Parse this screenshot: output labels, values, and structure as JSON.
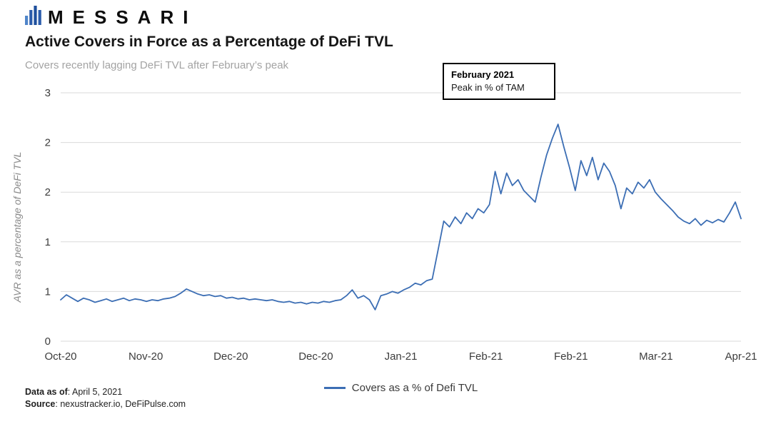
{
  "header": {
    "brand": "MESSARI",
    "title": "Active Covers in Force as a Percentage of DeFi TVL",
    "subtitle": "Covers recently lagging DeFi TVL after February’s peak"
  },
  "chart_data": {
    "type": "line",
    "title": "Active Covers in Force as a Percentage of DeFi TVL",
    "xlabel": "",
    "ylabel": "AVR as a percentage of DeFi TVL",
    "ylim": [
      0,
      3
    ],
    "grid": "horizontal",
    "y_ticks": [
      {
        "value": 0.0,
        "label": "0"
      },
      {
        "value": 0.6,
        "label": "1"
      },
      {
        "value": 1.2,
        "label": "1"
      },
      {
        "value": 1.8,
        "label": "2"
      },
      {
        "value": 2.4,
        "label": "2"
      },
      {
        "value": 3.0,
        "label": "3"
      }
    ],
    "x_tick_labels": [
      "Oct-20",
      "Nov-20",
      "Dec-20",
      "Dec-20",
      "Jan-21",
      "Feb-21",
      "Feb-21",
      "Mar-21",
      "Apr-21"
    ],
    "annotation": {
      "title": "February 2021",
      "text": "Peak in % of TAM"
    },
    "legend": {
      "label": "Covers as a % of Defi TVL",
      "position": "bottom-center"
    },
    "series": [
      {
        "name": "Covers as a % of Defi TVL",
        "color": "#3c6eb4",
        "y": [
          0.5,
          0.56,
          0.52,
          0.48,
          0.52,
          0.5,
          0.47,
          0.49,
          0.51,
          0.48,
          0.5,
          0.52,
          0.49,
          0.51,
          0.5,
          0.48,
          0.5,
          0.49,
          0.51,
          0.52,
          0.54,
          0.58,
          0.63,
          0.6,
          0.57,
          0.55,
          0.56,
          0.54,
          0.55,
          0.52,
          0.53,
          0.51,
          0.52,
          0.5,
          0.51,
          0.5,
          0.49,
          0.5,
          0.48,
          0.47,
          0.48,
          0.46,
          0.47,
          0.45,
          0.47,
          0.46,
          0.48,
          0.47,
          0.49,
          0.5,
          0.55,
          0.62,
          0.52,
          0.55,
          0.5,
          0.38,
          0.55,
          0.57,
          0.6,
          0.58,
          0.62,
          0.65,
          0.7,
          0.68,
          0.73,
          0.75,
          1.1,
          1.45,
          1.38,
          1.5,
          1.42,
          1.55,
          1.48,
          1.6,
          1.55,
          1.65,
          2.05,
          1.78,
          2.03,
          1.88,
          1.95,
          1.82,
          1.75,
          1.68,
          1.98,
          2.25,
          2.45,
          2.62,
          2.35,
          2.1,
          1.82,
          2.18,
          2.0,
          2.22,
          1.95,
          2.15,
          2.05,
          1.88,
          1.6,
          1.85,
          1.78,
          1.92,
          1.85,
          1.95,
          1.8,
          1.72,
          1.65,
          1.58,
          1.5,
          1.45,
          1.42,
          1.48,
          1.4,
          1.46,
          1.43,
          1.47,
          1.44,
          1.55,
          1.68,
          1.48
        ]
      }
    ]
  },
  "footer": {
    "data_as_of_label": "Data as of",
    "data_as_of_value": ": April 5, 2021",
    "source_label": "Source",
    "source_value": ": nexustracker.io, DeFiPulse.com"
  }
}
